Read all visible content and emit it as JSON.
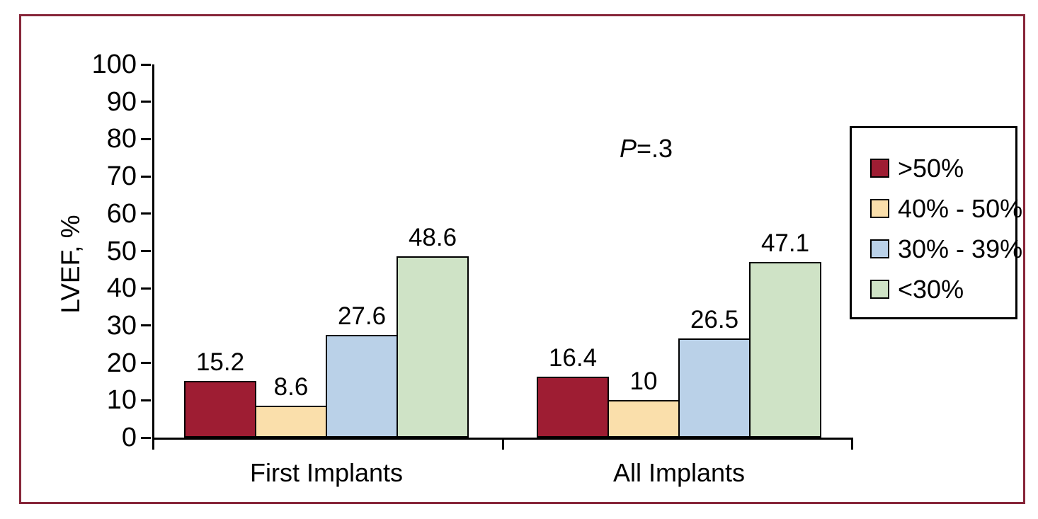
{
  "figure": {
    "frame_color": "#872639",
    "background": "#FFFFFF",
    "axis_color": "#000000"
  },
  "chart_data": {
    "type": "bar",
    "title": "",
    "xlabel": "",
    "ylabel": "LVEF, %",
    "ylim": [
      0,
      100
    ],
    "ytick_step": 10,
    "yticks": [
      0,
      10,
      20,
      30,
      40,
      50,
      60,
      70,
      80,
      90,
      100
    ],
    "categories": [
      "First Implants",
      "All Implants"
    ],
    "series": [
      {
        "name": ">50%",
        "color": "#9E1D33",
        "values": [
          15.2,
          16.4
        ]
      },
      {
        "name": "40% - 50%",
        "color": "#FADFAB",
        "values": [
          8.6,
          10
        ]
      },
      {
        "name": "30% - 39%",
        "color": "#BAD1E8",
        "values": [
          27.6,
          26.5
        ]
      },
      {
        "name": "<30%",
        "color": "#CFE3C6",
        "values": [
          48.6,
          47.1
        ]
      }
    ],
    "bar_value_labels": [
      [
        "15.2",
        "8.6",
        "27.6",
        "48.6"
      ],
      [
        "16.4",
        "10",
        "26.5",
        "47.1"
      ]
    ],
    "annotation": {
      "label_italic": "P",
      "label_rest": "=.3"
    },
    "legend_position": "right",
    "grid": false
  }
}
